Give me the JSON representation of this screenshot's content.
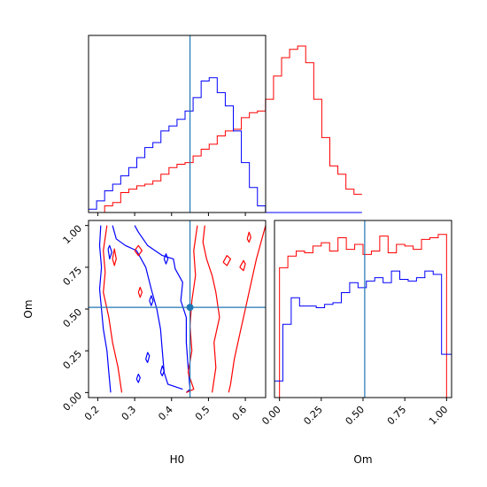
{
  "chart_data": {
    "type": "corner",
    "parameters": [
      "H0",
      "Om"
    ],
    "truth": {
      "H0": 0.45,
      "Om": 0.51
    },
    "colors": {
      "posterior_a": "#ff0000",
      "posterior_b": "#0000ff",
      "truth": "#1f77b4"
    },
    "grid": false,
    "panels": [
      {
        "id": "hist_H0",
        "type": "histogram",
        "x_param": "H0",
        "xlim": [
          0.175,
          0.655
        ],
        "series": [
          {
            "color": "#ff0000",
            "x_start": 0.175,
            "bin_width": 0.0218,
            "heights": [
              0.0,
              0.0,
              0.04,
              0.06,
              0.12,
              0.14,
              0.16,
              0.17,
              0.19,
              0.23,
              0.27,
              0.29,
              0.3,
              0.34,
              0.38,
              0.41,
              0.46,
              0.49,
              0.5,
              0.57,
              0.6,
              0.61,
              0.68,
              0.82,
              0.93,
              0.98,
              1.0,
              0.9,
              0.68,
              0.45,
              0.28,
              0.23,
              0.14,
              0.11
            ]
          },
          {
            "color": "#0000ff",
            "x_start": 0.175,
            "bin_width": 0.0218,
            "heights": [
              0.02,
              0.07,
              0.13,
              0.17,
              0.22,
              0.27,
              0.33,
              0.39,
              0.42,
              0.49,
              0.52,
              0.56,
              0.61,
              0.69,
              0.79,
              0.81,
              0.72,
              0.64,
              0.49,
              0.3,
              0.15,
              0.04,
              0.0,
              0.0,
              0.0,
              0.0,
              0.0,
              0.0,
              0.0,
              0.0,
              0.0,
              0.0,
              0.0,
              0.0
            ]
          }
        ],
        "xticks": [
          0.2,
          0.3,
          0.4,
          0.5,
          0.6
        ]
      },
      {
        "id": "contour_H0_Om",
        "type": "contour",
        "x_param": "H0",
        "y_param": "Om",
        "xlim": [
          0.175,
          0.655
        ],
        "ylim": [
          -0.03,
          1.03
        ],
        "xlabel": "H0",
        "ylabel": "Om",
        "xticks": [
          0.2,
          0.3,
          0.4,
          0.5,
          0.6
        ],
        "xtick_labels": [
          "0.2",
          "0.3",
          "0.4",
          "0.5",
          "0.6"
        ],
        "yticks": [
          0.0,
          0.25,
          0.5,
          0.75,
          1.0
        ],
        "ytick_labels": [
          "0.00",
          "0.25",
          "0.50",
          "0.75",
          "1.00"
        ],
        "contours": [
          {
            "color": "#0000ff",
            "points": [
              [
                0.208,
                1.0
              ],
              [
                0.205,
                0.88
              ],
              [
                0.21,
                0.75
              ],
              [
                0.205,
                0.62
              ],
              [
                0.21,
                0.5
              ],
              [
                0.215,
                0.38
              ],
              [
                0.225,
                0.25
              ],
              [
                0.23,
                0.12
              ],
              [
                0.235,
                0.0
              ]
            ]
          },
          {
            "color": "#0000ff",
            "points": [
              [
                0.3,
                1.0
              ],
              [
                0.31,
                0.96
              ],
              [
                0.335,
                0.88
              ],
              [
                0.375,
                0.82
              ],
              [
                0.405,
                0.8
              ],
              [
                0.41,
                0.74
              ],
              [
                0.43,
                0.66
              ],
              [
                0.425,
                0.55
              ],
              [
                0.44,
                0.45
              ],
              [
                0.44,
                0.3
              ],
              [
                0.445,
                0.15
              ],
              [
                0.45,
                0.02
              ],
              [
                0.44,
                0.0
              ]
            ]
          },
          {
            "color": "#0000ff",
            "points": [
              [
                0.24,
                1.0
              ],
              [
                0.25,
                0.92
              ],
              [
                0.275,
                0.88
              ],
              [
                0.305,
                0.85
              ],
              [
                0.33,
                0.75
              ],
              [
                0.345,
                0.62
              ],
              [
                0.36,
                0.5
              ],
              [
                0.37,
                0.38
              ],
              [
                0.375,
                0.25
              ],
              [
                0.38,
                0.12
              ],
              [
                0.39,
                0.05
              ],
              [
                0.43,
                0.02
              ]
            ]
          },
          {
            "color": "#0000ff",
            "points": [
              [
                0.228,
                0.86
              ],
              [
                0.232,
                0.8
              ],
              [
                0.238,
                0.84
              ],
              [
                0.232,
                0.88
              ],
              [
                0.228,
                0.86
              ]
            ]
          },
          {
            "color": "#0000ff",
            "points": [
              [
                0.33,
                0.2
              ],
              [
                0.335,
                0.24
              ],
              [
                0.34,
                0.22
              ],
              [
                0.335,
                0.18
              ],
              [
                0.33,
                0.2
              ]
            ]
          },
          {
            "color": "#0000ff",
            "points": [
              [
                0.305,
                0.08
              ],
              [
                0.31,
                0.11
              ],
              [
                0.315,
                0.09
              ],
              [
                0.31,
                0.06
              ],
              [
                0.305,
                0.08
              ]
            ]
          },
          {
            "color": "#0000ff",
            "points": [
              [
                0.37,
                0.12
              ],
              [
                0.375,
                0.16
              ],
              [
                0.38,
                0.13
              ],
              [
                0.375,
                0.1
              ],
              [
                0.37,
                0.12
              ]
            ]
          },
          {
            "color": "#0000ff",
            "points": [
              [
                0.38,
                0.8
              ],
              [
                0.385,
                0.83
              ],
              [
                0.39,
                0.8
              ],
              [
                0.385,
                0.77
              ],
              [
                0.38,
                0.8
              ]
            ]
          },
          {
            "color": "#0000ff",
            "points": [
              [
                0.34,
                0.55
              ],
              [
                0.345,
                0.58
              ],
              [
                0.35,
                0.55
              ],
              [
                0.345,
                0.52
              ],
              [
                0.34,
                0.55
              ]
            ]
          },
          {
            "color": "#ff0000",
            "points": [
              [
                0.225,
                1.0
              ],
              [
                0.215,
                0.85
              ],
              [
                0.22,
                0.72
              ],
              [
                0.215,
                0.6
              ],
              [
                0.23,
                0.45
              ],
              [
                0.24,
                0.3
              ],
              [
                0.255,
                0.15
              ],
              [
                0.265,
                0.0
              ]
            ]
          },
          {
            "color": "#ff0000",
            "points": [
              [
                0.47,
                1.0
              ],
              [
                0.46,
                0.85
              ],
              [
                0.465,
                0.7
              ],
              [
                0.455,
                0.55
              ],
              [
                0.45,
                0.4
              ],
              [
                0.455,
                0.25
              ],
              [
                0.445,
                0.12
              ],
              [
                0.46,
                0.02
              ],
              [
                0.44,
                0.0
              ]
            ]
          },
          {
            "color": "#ff0000",
            "points": [
              [
                0.655,
                1.0
              ],
              [
                0.645,
                0.92
              ],
              [
                0.63,
                0.8
              ],
              [
                0.615,
                0.65
              ],
              [
                0.6,
                0.5
              ],
              [
                0.585,
                0.35
              ],
              [
                0.57,
                0.2
              ],
              [
                0.56,
                0.05
              ],
              [
                0.555,
                0.0
              ]
            ]
          },
          {
            "color": "#ff0000",
            "points": [
              [
                0.49,
                1.0
              ],
              [
                0.485,
                0.9
              ],
              [
                0.495,
                0.8
              ],
              [
                0.51,
                0.7
              ],
              [
                0.52,
                0.6
              ],
              [
                0.53,
                0.45
              ],
              [
                0.515,
                0.3
              ],
              [
                0.52,
                0.15
              ],
              [
                0.51,
                0.0
              ]
            ]
          },
          {
            "color": "#ff0000",
            "points": [
              [
                0.24,
                0.8
              ],
              [
                0.245,
                0.86
              ],
              [
                0.25,
                0.8
              ],
              [
                0.245,
                0.76
              ],
              [
                0.24,
                0.8
              ]
            ]
          },
          {
            "color": "#ff0000",
            "points": [
              [
                0.3,
                0.85
              ],
              [
                0.31,
                0.88
              ],
              [
                0.32,
                0.85
              ],
              [
                0.31,
                0.82
              ],
              [
                0.3,
                0.85
              ]
            ]
          },
          {
            "color": "#ff0000",
            "points": [
              [
                0.31,
                0.6
              ],
              [
                0.315,
                0.63
              ],
              [
                0.32,
                0.6
              ],
              [
                0.315,
                0.57
              ],
              [
                0.31,
                0.6
              ]
            ]
          },
          {
            "color": "#ff0000",
            "points": [
              [
                0.54,
                0.78
              ],
              [
                0.55,
                0.82
              ],
              [
                0.56,
                0.8
              ],
              [
                0.55,
                0.76
              ],
              [
                0.54,
                0.78
              ]
            ]
          },
          {
            "color": "#ff0000",
            "points": [
              [
                0.585,
                0.75
              ],
              [
                0.595,
                0.79
              ],
              [
                0.6,
                0.77
              ],
              [
                0.595,
                0.73
              ],
              [
                0.585,
                0.75
              ]
            ]
          },
          {
            "color": "#ff0000",
            "points": [
              [
                0.605,
                0.92
              ],
              [
                0.61,
                0.96
              ],
              [
                0.615,
                0.93
              ],
              [
                0.61,
                0.9
              ],
              [
                0.605,
                0.92
              ]
            ]
          }
        ]
      },
      {
        "id": "hist_Om",
        "type": "histogram",
        "x_param": "Om",
        "xlim": [
          -0.03,
          1.03
        ],
        "xlabel": "Om",
        "xticks": [
          0.0,
          0.25,
          0.5,
          0.75,
          1.0
        ],
        "xtick_labels": [
          "0.00",
          "0.25",
          "0.50",
          "0.75",
          "1.00"
        ],
        "series": [
          {
            "color": "#ff0000",
            "x_start": 0.0,
            "bin_width": 0.05,
            "heights": [
              0.78,
              0.85,
              0.88,
              0.87,
              0.91,
              0.93,
              0.88,
              0.96,
              0.89,
              0.92,
              0.86,
              0.88,
              0.97,
              0.87,
              0.92,
              0.91,
              0.89,
              0.95,
              0.96,
              0.98
            ]
          },
          {
            "color": "#0000ff",
            "x_start": -0.03,
            "bin_width": 0.05,
            "heights": [
              0.1,
              0.44,
              0.6,
              0.55,
              0.55,
              0.54,
              0.56,
              0.57,
              0.63,
              0.69,
              0.66,
              0.7,
              0.72,
              0.69,
              0.76,
              0.71,
              0.7,
              0.72,
              0.76,
              0.74,
              0.26,
              0.26
            ]
          }
        ]
      }
    ]
  }
}
